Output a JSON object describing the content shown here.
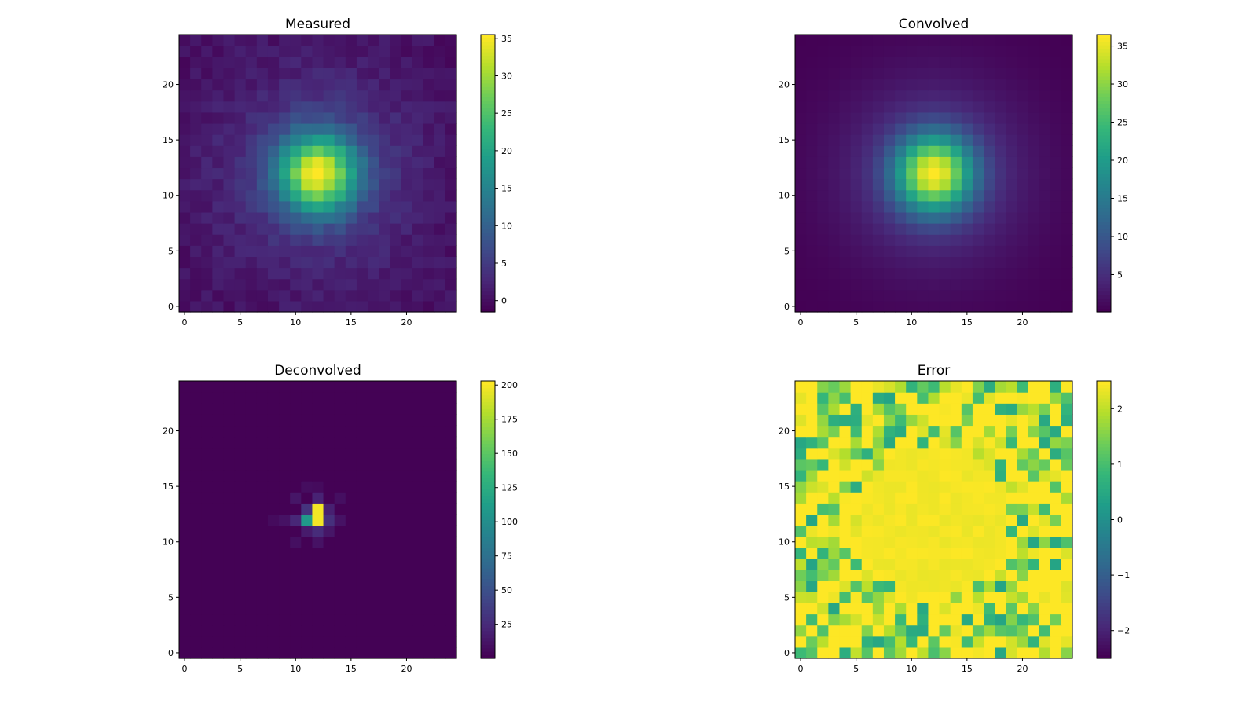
{
  "chart_data": [
    {
      "type": "heatmap",
      "title": "Measured",
      "colormap": "viridis",
      "grid_size": 25,
      "origin": "lower",
      "xlim": [
        -0.5,
        24.5
      ],
      "ylim": [
        -0.5,
        24.5
      ],
      "xticks": [
        "0",
        "5",
        "10",
        "15",
        "20"
      ],
      "yticks": [
        "0",
        "5",
        "10",
        "15",
        "20"
      ],
      "colorbar": {
        "min": -1.5,
        "max": 35.5,
        "ticks": [
          "0",
          "5",
          "10",
          "15",
          "20",
          "25",
          "30",
          "35"
        ]
      },
      "model": {
        "kind": "blob",
        "center": [
          12,
          12
        ],
        "peak": 35,
        "sigma": 2.4,
        "noise": 1.2,
        "seed": 7
      },
      "grid": false
    },
    {
      "type": "heatmap",
      "title": "Convolved",
      "colormap": "viridis",
      "grid_size": 25,
      "origin": "lower",
      "xlim": [
        -0.5,
        24.5
      ],
      "ylim": [
        -0.5,
        24.5
      ],
      "xticks": [
        "0",
        "5",
        "10",
        "15",
        "20"
      ],
      "yticks": [
        "0",
        "5",
        "10",
        "15",
        "20"
      ],
      "colorbar": {
        "min": 0.1,
        "max": 36.5,
        "ticks": [
          "5",
          "10",
          "15",
          "20",
          "25",
          "30",
          "35"
        ]
      },
      "model": {
        "kind": "blob",
        "center": [
          12,
          12
        ],
        "peak": 36,
        "sigma": 2.4,
        "noise": 0,
        "seed": 3
      },
      "grid": false
    },
    {
      "type": "heatmap",
      "title": "Deconvolved",
      "colormap": "viridis",
      "grid_size": 25,
      "origin": "lower",
      "xlim": [
        -0.5,
        24.5
      ],
      "ylim": [
        -0.5,
        24.5
      ],
      "xticks": [
        "0",
        "5",
        "10",
        "15",
        "20"
      ],
      "yticks": [
        "0",
        "5",
        "10",
        "15",
        "20"
      ],
      "colorbar": {
        "min": 0.1,
        "max": 203,
        "ticks": [
          "25",
          "50",
          "75",
          "100",
          "125",
          "150",
          "175",
          "200"
        ]
      },
      "model": {
        "kind": "spike",
        "cells": [
          [
            12,
            12,
            200
          ],
          [
            12,
            13,
            200
          ],
          [
            11,
            12,
            110
          ],
          [
            11,
            13,
            30
          ],
          [
            13,
            12,
            28
          ],
          [
            12,
            11,
            25
          ],
          [
            10,
            12,
            22
          ],
          [
            12,
            14,
            20
          ],
          [
            13,
            13,
            18
          ],
          [
            11,
            11,
            15
          ],
          [
            10,
            14,
            12
          ],
          [
            13,
            11,
            12
          ],
          [
            9,
            12,
            10
          ],
          [
            14,
            12,
            10
          ],
          [
            12,
            10,
            10
          ],
          [
            10,
            10,
            8
          ],
          [
            14,
            14,
            8
          ],
          [
            11,
            15,
            7
          ],
          [
            8,
            12,
            6
          ],
          [
            12,
            15,
            6
          ]
        ]
      },
      "grid": false
    },
    {
      "type": "heatmap",
      "title": "Error",
      "colormap": "viridis",
      "grid_size": 25,
      "origin": "lower",
      "xlim": [
        -0.5,
        24.5
      ],
      "ylim": [
        -0.5,
        24.5
      ],
      "xticks": [
        "0",
        "5",
        "10",
        "15",
        "20"
      ],
      "yticks": [
        "0",
        "5",
        "10",
        "15",
        "20"
      ],
      "colorbar": {
        "min": -2.5,
        "max": 2.5,
        "ticks": [
          "−2",
          "−1",
          "0",
          "1",
          "2"
        ]
      },
      "model": {
        "kind": "error",
        "center": [
          12,
          12
        ],
        "radius": 7,
        "seed": 11
      },
      "grid": false
    }
  ]
}
